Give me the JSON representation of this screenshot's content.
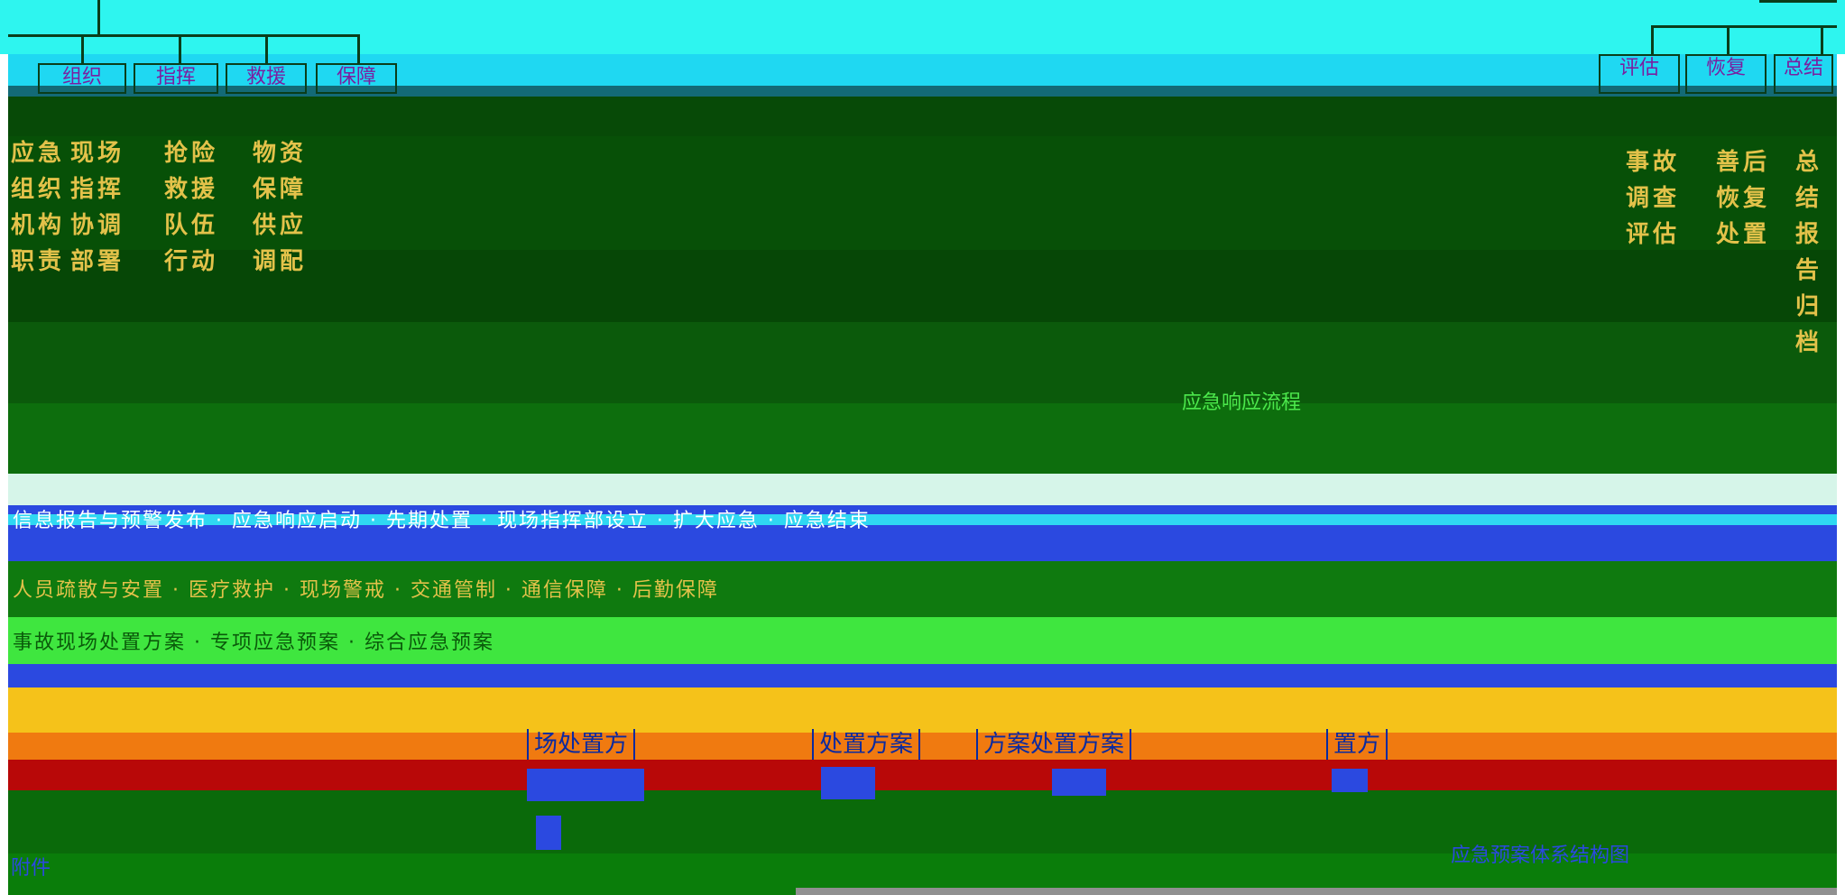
{
  "left_tree": {
    "nodes": [
      {
        "label": "组织"
      },
      {
        "label": "指挥"
      },
      {
        "label": "救援"
      },
      {
        "label": "保障"
      }
    ],
    "columns": [
      [
        "应急",
        "组织",
        "机构",
        "职责"
      ],
      [
        "现场",
        "指挥",
        "协调",
        "部署"
      ],
      [
        "抢险",
        "救援",
        "队伍",
        "行动"
      ],
      [
        "物资",
        "保障",
        "供应",
        "调配"
      ]
    ]
  },
  "right_tree": {
    "nodes": [
      {
        "label": "评估"
      },
      {
        "label": "恢复"
      },
      {
        "label": "总结"
      }
    ],
    "columns": [
      [
        "事故",
        "调查",
        "评估"
      ],
      [
        "善后",
        "恢复",
        "处置"
      ],
      [
        "总结",
        "报告",
        "归档"
      ]
    ]
  },
  "center_label": "应急响应流程",
  "rows": {
    "row1": "信息报告与预警发布 · 应急响应启动 · 先期处置 · 现场指挥部设立 · 扩大应急 · 应急结束",
    "row2": "人员疏散与安置 · 医疗救护 · 现场警戒 · 交通管制 · 通信保障 · 后勤保障",
    "row3": "事故现场处置方案 · 专项应急预案 · 综合应急预案"
  },
  "plan_cells": [
    {
      "label": "场处置方"
    },
    {
      "label": "处置方案"
    },
    {
      "label": "方案处置方案"
    },
    {
      "label": "置方"
    }
  ],
  "footer": {
    "left": "附件",
    "right": "应急预案体系结构图"
  }
}
